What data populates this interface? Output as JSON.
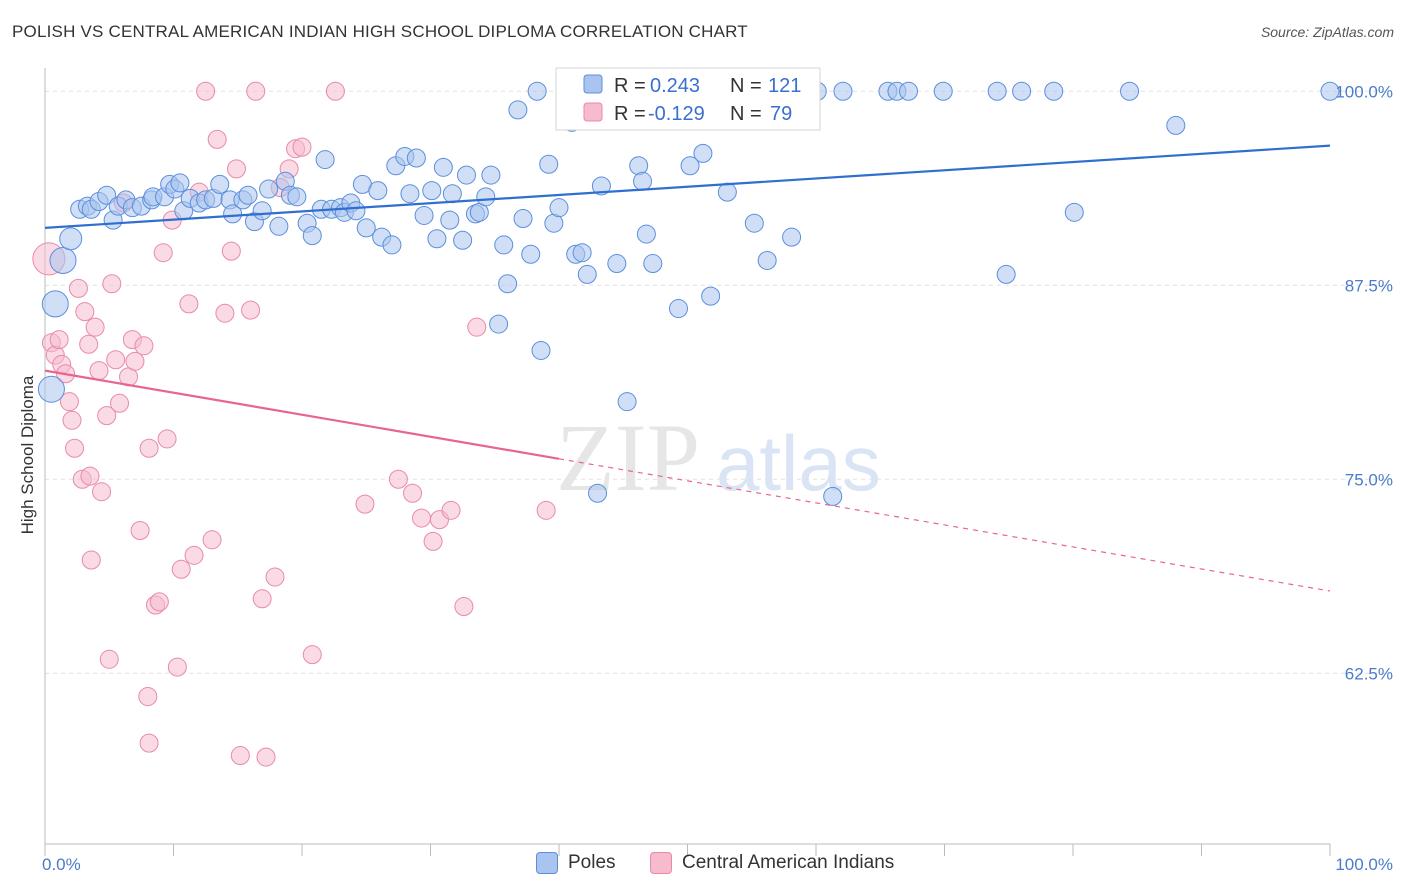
{
  "header": {
    "title": "POLISH VS CENTRAL AMERICAN INDIAN HIGH SCHOOL DIPLOMA CORRELATION CHART",
    "source": "Source: ZipAtlas.com"
  },
  "watermark": {
    "zip": "ZIP",
    "atlas": "atlas"
  },
  "colors": {
    "poles_fill": "#a9c4ef",
    "poles_stroke": "#5b8fdd",
    "poles_line": "#2f6fd0",
    "cai_fill": "#f6bccd",
    "cai_stroke": "#e98aa8",
    "cai_line": "#e7668f",
    "accent_text": "#4a7cc9",
    "grid": "#e2e2e2"
  },
  "stats": [
    {
      "r_label": "R =",
      "r_value": "0.243",
      "n_label": "N =",
      "n_value": "121"
    },
    {
      "r_label": "R =",
      "r_value": "-0.129",
      "n_label": "N =",
      "n_value": "79"
    }
  ],
  "legend": {
    "poles": "Poles",
    "cai": "Central American Indians"
  },
  "chart_data": {
    "type": "scatter",
    "title": "POLISH VS CENTRAL AMERICAN INDIAN HIGH SCHOOL DIPLOMA CORRELATION CHART",
    "xlabel": "",
    "ylabel": "High School Diploma",
    "xlim": [
      0,
      100
    ],
    "ylim": [
      51.5,
      101.5
    ],
    "x_tick_labels": [
      "0.0%",
      "100.0%"
    ],
    "y_ticks": [
      62.5,
      75.0,
      87.5,
      100.0
    ],
    "y_tick_labels": [
      "62.5%",
      "75.0%",
      "87.5%",
      "100.0%"
    ],
    "grid": true,
    "legend_position": "bottom",
    "series": [
      {
        "name": "Poles",
        "r": 0.243,
        "n": 121,
        "trend": {
          "x": [
            0,
            100
          ],
          "y": [
            91.2,
            96.5
          ],
          "solid_to": 100
        },
        "points": [
          [
            0.5,
            80.8
          ],
          [
            0.8,
            86.3
          ],
          [
            1.4,
            89.1
          ],
          [
            2,
            90.5
          ],
          [
            2.7,
            92.4
          ],
          [
            3.3,
            92.6
          ],
          [
            3.6,
            92.4
          ],
          [
            4.2,
            92.9
          ],
          [
            4.8,
            93.3
          ],
          [
            5.3,
            91.7
          ],
          [
            5.7,
            92.6
          ],
          [
            6.3,
            93.0
          ],
          [
            6.8,
            92.5
          ],
          [
            7.5,
            92.6
          ],
          [
            8.3,
            93.0
          ],
          [
            8.4,
            93.2
          ],
          [
            9.3,
            93.2
          ],
          [
            9.7,
            94.0
          ],
          [
            10.1,
            93.7
          ],
          [
            10.5,
            94.1
          ],
          [
            10.8,
            92.3
          ],
          [
            11.3,
            93.1
          ],
          [
            12,
            92.8
          ],
          [
            12.5,
            93.0
          ],
          [
            13.1,
            93.1
          ],
          [
            13.6,
            94.0
          ],
          [
            14.4,
            93.0
          ],
          [
            14.6,
            92.1
          ],
          [
            15.4,
            93.0
          ],
          [
            15.8,
            93.3
          ],
          [
            16.3,
            91.6
          ],
          [
            16.9,
            92.3
          ],
          [
            17.4,
            93.7
          ],
          [
            18.2,
            91.3
          ],
          [
            18.7,
            94.2
          ],
          [
            19.1,
            93.3
          ],
          [
            19.6,
            93.2
          ],
          [
            20.4,
            91.5
          ],
          [
            20.8,
            90.7
          ],
          [
            21.5,
            92.4
          ],
          [
            21.8,
            95.6
          ],
          [
            22.3,
            92.4
          ],
          [
            23,
            92.5
          ],
          [
            23.3,
            92.2
          ],
          [
            23.8,
            92.8
          ],
          [
            24.2,
            92.3
          ],
          [
            24.7,
            94.0
          ],
          [
            25,
            91.2
          ],
          [
            25.9,
            93.6
          ],
          [
            26.2,
            90.6
          ],
          [
            27,
            90.1
          ],
          [
            27.3,
            95.2
          ],
          [
            28,
            95.8
          ],
          [
            28.4,
            93.4
          ],
          [
            28.9,
            95.7
          ],
          [
            29.5,
            92.0
          ],
          [
            30.1,
            93.6
          ],
          [
            30.5,
            90.5
          ],
          [
            31.0,
            95.1
          ],
          [
            31.5,
            91.7
          ],
          [
            31.7,
            93.4
          ],
          [
            32.5,
            90.4
          ],
          [
            32.8,
            94.6
          ],
          [
            33.5,
            92.1
          ],
          [
            33.8,
            92.2
          ],
          [
            34.3,
            93.2
          ],
          [
            34.7,
            94.6
          ],
          [
            35.3,
            85.0
          ],
          [
            35.7,
            90.1
          ],
          [
            36.0,
            87.6
          ],
          [
            36.8,
            98.8
          ],
          [
            37.2,
            91.8
          ],
          [
            37.8,
            89.5
          ],
          [
            38.3,
            100.0
          ],
          [
            38.6,
            83.3
          ],
          [
            39.2,
            95.3
          ],
          [
            39.6,
            91.5
          ],
          [
            40.0,
            92.5
          ],
          [
            41,
            98.0
          ],
          [
            41.3,
            89.5
          ],
          [
            41.8,
            89.6
          ],
          [
            42.2,
            88.2
          ],
          [
            43,
            74.1
          ],
          [
            43.3,
            93.9
          ],
          [
            44.5,
            88.9
          ],
          [
            45.3,
            80.0
          ],
          [
            46.2,
            95.2
          ],
          [
            46.5,
            94.2
          ],
          [
            46.8,
            90.8
          ],
          [
            47.3,
            88.9
          ],
          [
            48.5,
            100.0
          ],
          [
            49.3,
            86.0
          ],
          [
            50.2,
            95.2
          ],
          [
            51.2,
            96.0
          ],
          [
            51.8,
            86.8
          ],
          [
            53.1,
            93.5
          ],
          [
            54.1,
            100.0
          ],
          [
            55.2,
            91.5
          ],
          [
            56.2,
            89.1
          ],
          [
            58.1,
            90.6
          ],
          [
            60.1,
            100.0
          ],
          [
            61.3,
            73.9
          ],
          [
            62.1,
            100.0
          ],
          [
            65.6,
            100.0
          ],
          [
            66.3,
            100.0
          ],
          [
            67.2,
            100.0
          ],
          [
            69.9,
            100.0
          ],
          [
            74.1,
            100.0
          ],
          [
            74.8,
            88.2
          ],
          [
            76.0,
            100.0
          ],
          [
            78.5,
            100.0
          ],
          [
            80.1,
            92.2
          ],
          [
            84.4,
            100.0
          ],
          [
            88.0,
            97.8
          ],
          [
            100,
            100.0
          ]
        ]
      },
      {
        "name": "Central American Indians",
        "r": -0.129,
        "n": 79,
        "trend": {
          "x": [
            0,
            100
          ],
          "y": [
            82.0,
            67.8
          ],
          "solid_to": 40
        },
        "points": [
          [
            0.3,
            89.2
          ],
          [
            0.5,
            83.8
          ],
          [
            0.8,
            83.0
          ],
          [
            1.1,
            84.0
          ],
          [
            1.3,
            82.4
          ],
          [
            1.6,
            81.8
          ],
          [
            1.9,
            80.0
          ],
          [
            2.1,
            78.8
          ],
          [
            2.3,
            77.0
          ],
          [
            2.6,
            87.3
          ],
          [
            2.9,
            75.0
          ],
          [
            3.1,
            85.8
          ],
          [
            3.4,
            83.7
          ],
          [
            3.5,
            75.2
          ],
          [
            3.6,
            69.8
          ],
          [
            3.9,
            84.8
          ],
          [
            4.2,
            82.0
          ],
          [
            4.4,
            74.2
          ],
          [
            4.8,
            79.1
          ],
          [
            5.0,
            63.4
          ],
          [
            5.2,
            87.6
          ],
          [
            5.5,
            82.7
          ],
          [
            5.8,
            79.9
          ],
          [
            6.1,
            92.8
          ],
          [
            6.5,
            81.6
          ],
          [
            6.8,
            84.0
          ],
          [
            7.0,
            82.6
          ],
          [
            7.4,
            71.7
          ],
          [
            7.7,
            83.6
          ],
          [
            8.1,
            77.0
          ],
          [
            8.6,
            66.9
          ],
          [
            8.9,
            67.1
          ],
          [
            9.2,
            89.6
          ],
          [
            9.5,
            77.6
          ],
          [
            9.9,
            91.7
          ],
          [
            10.3,
            62.9
          ],
          [
            10.6,
            69.2
          ],
          [
            11.2,
            86.3
          ],
          [
            11.6,
            70.1
          ],
          [
            12.0,
            93.5
          ],
          [
            12.5,
            100.0
          ],
          [
            13.0,
            71.1
          ],
          [
            13.4,
            96.9
          ],
          [
            14.0,
            85.7
          ],
          [
            14.5,
            89.7
          ],
          [
            14.9,
            95.0
          ],
          [
            15.2,
            57.2
          ],
          [
            16.0,
            85.9
          ],
          [
            16.4,
            100.0
          ],
          [
            16.9,
            67.3
          ],
          [
            17.2,
            57.1
          ],
          [
            17.9,
            68.7
          ],
          [
            18.3,
            93.8
          ],
          [
            19.0,
            95.0
          ],
          [
            19.5,
            96.3
          ],
          [
            20.0,
            96.4
          ],
          [
            20.8,
            63.7
          ],
          [
            22.6,
            100.0
          ],
          [
            24.9,
            73.4
          ],
          [
            27.5,
            75.0
          ],
          [
            28.6,
            74.1
          ],
          [
            29.3,
            72.5
          ],
          [
            30.2,
            71.0
          ],
          [
            30.7,
            72.4
          ],
          [
            31.6,
            73.0
          ],
          [
            32.6,
            66.8
          ],
          [
            33.6,
            84.8
          ],
          [
            39.0,
            73.0
          ],
          [
            8.0,
            61.0
          ],
          [
            8.1,
            58.0
          ]
        ]
      }
    ]
  }
}
